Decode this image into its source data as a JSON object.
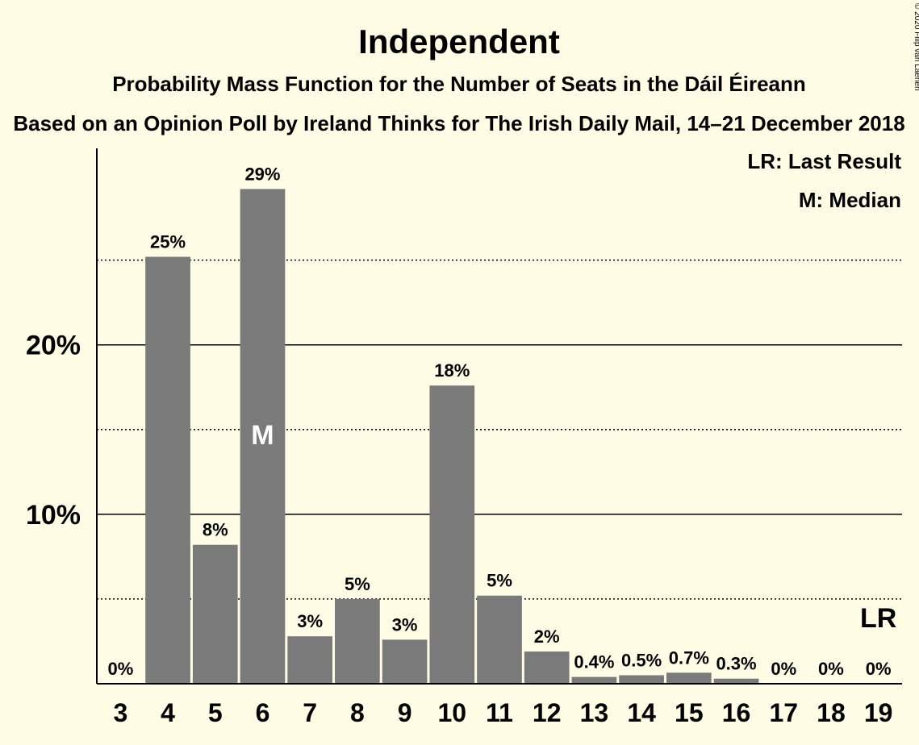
{
  "title": "Independent",
  "subtitle": "Probability Mass Function for the Number of Seats in the Dáil Éireann",
  "subtitle2": "Based on an Opinion Poll by Ireland Thinks for The Irish Daily Mail, 14–21 December 2018",
  "copyright": "© 2020 Filip van Laenen",
  "legend": {
    "last_result": "LR: Last Result",
    "median": "M: Median"
  },
  "colors": {
    "background": "#FFFDE5",
    "bar": "#7A7A7A",
    "axis": "#000000"
  },
  "chart_data": {
    "type": "bar",
    "categories": [
      "3",
      "4",
      "5",
      "6",
      "7",
      "8",
      "9",
      "10",
      "11",
      "12",
      "13",
      "14",
      "15",
      "16",
      "17",
      "18",
      "19"
    ],
    "values": [
      0,
      25.2,
      8.2,
      29.2,
      2.8,
      5.0,
      2.6,
      17.6,
      5.2,
      1.9,
      0.4,
      0.5,
      0.65,
      0.3,
      0,
      0,
      0
    ],
    "data_labels": [
      "0%",
      "25%",
      "8%",
      "29%",
      "3%",
      "5%",
      "3%",
      "18%",
      "5%",
      "2%",
      "0.4%",
      "0.5%",
      "0.7%",
      "0.3%",
      "0%",
      "0%",
      "0%"
    ],
    "median_category": "6",
    "median_marker": "M",
    "last_result_category": "19",
    "last_result_marker": "LR",
    "yticks": [
      {
        "value": 10,
        "label": "10%"
      },
      {
        "value": 20,
        "label": "20%"
      }
    ],
    "minor_gridlines": [
      5,
      15,
      25
    ],
    "ylim": [
      0,
      31.6
    ],
    "xlabel": "",
    "ylabel": "",
    "grid": true
  }
}
